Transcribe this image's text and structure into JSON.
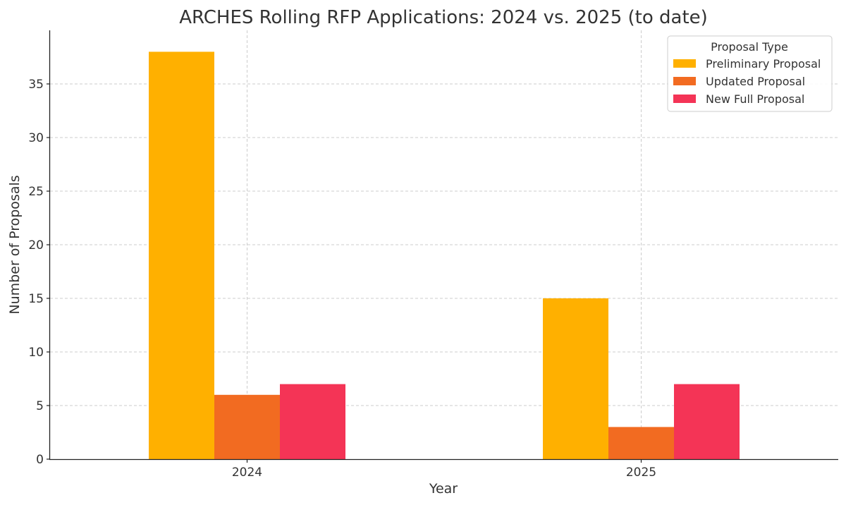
{
  "chart_data": {
    "type": "bar",
    "title": "ARCHES Rolling RFP Applications: 2024 vs. 2025 (to date)",
    "xlabel": "Year",
    "ylabel": "Number of Proposals",
    "categories": [
      "2024",
      "2025"
    ],
    "series": [
      {
        "name": "Preliminary Proposal",
        "values": [
          38,
          15
        ],
        "color": "#FFB000"
      },
      {
        "name": "Updated Proposal",
        "values": [
          6,
          3
        ],
        "color": "#F26B21"
      },
      {
        "name": "New Full Proposal",
        "values": [
          7,
          7
        ],
        "color": "#F43456"
      }
    ],
    "ylim": [
      0,
      40
    ],
    "yticks": [
      0,
      5,
      10,
      15,
      20,
      25,
      30,
      35
    ],
    "grid": true,
    "legend": {
      "title": "Proposal Type",
      "placement": "top-right"
    }
  }
}
